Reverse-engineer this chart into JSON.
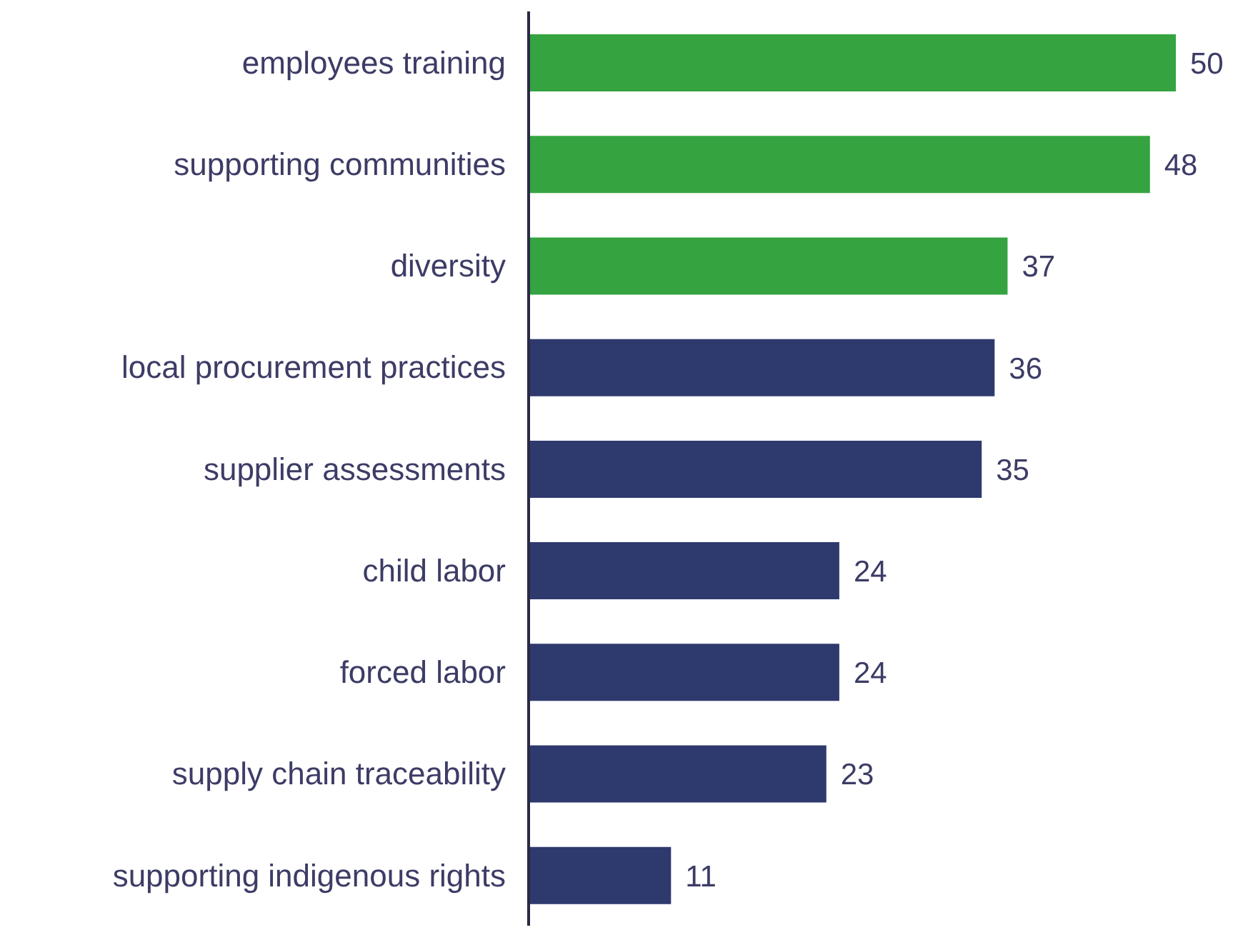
{
  "chart_data": {
    "type": "bar",
    "orientation": "horizontal",
    "categories": [
      "employees training",
      "supporting communities",
      "diversity",
      "local procurement practices",
      "supplier assessments",
      "child labor",
      "forced labor",
      "supply chain traceability",
      "supporting indigenous rights"
    ],
    "values": [
      50,
      48,
      37,
      36,
      35,
      24,
      24,
      23,
      11
    ],
    "colors": [
      "#34a340",
      "#34a340",
      "#34a340",
      "#2e3a6e",
      "#2e3a6e",
      "#2e3a6e",
      "#2e3a6e",
      "#2e3a6e",
      "#2e3a6e"
    ],
    "data_labels": true
  }
}
